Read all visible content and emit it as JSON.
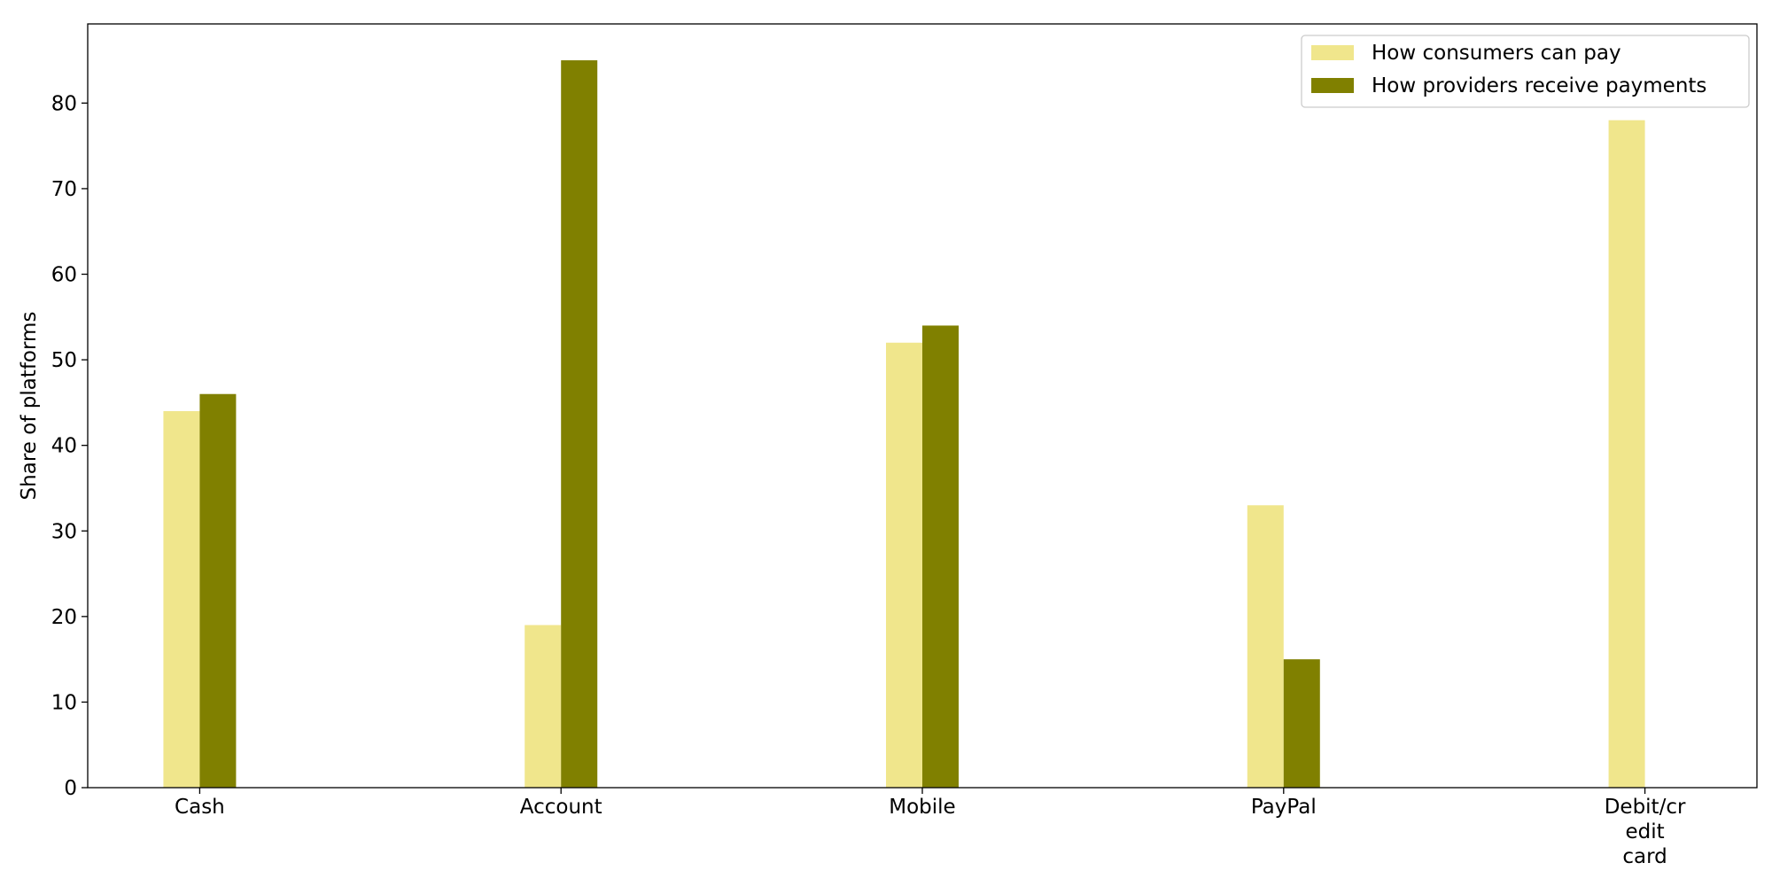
{
  "chart_data": {
    "type": "bar",
    "title": "",
    "xlabel": "",
    "ylabel": "Share of platforms",
    "categories": [
      "Cash",
      "Account",
      "Mobile",
      "PayPal",
      "Debit/credit card"
    ],
    "category_tick_lines": [
      [
        "Cash"
      ],
      [
        "Account"
      ],
      [
        "Mobile"
      ],
      [
        "PayPal"
      ],
      [
        "Debit/cr",
        "edit",
        "card"
      ]
    ],
    "series": [
      {
        "name": "How consumers can pay",
        "color": "#f0e68c",
        "values": [
          44,
          19,
          52,
          33,
          78
        ]
      },
      {
        "name": "How providers receive payments",
        "color": "#808000",
        "values": [
          46,
          85,
          54,
          15,
          0
        ]
      }
    ],
    "ylim": [
      0,
      89.25
    ],
    "yticks": [
      0,
      10,
      20,
      30,
      40,
      50,
      60,
      70,
      80
    ],
    "grid": false,
    "legend_position": "top-right"
  }
}
